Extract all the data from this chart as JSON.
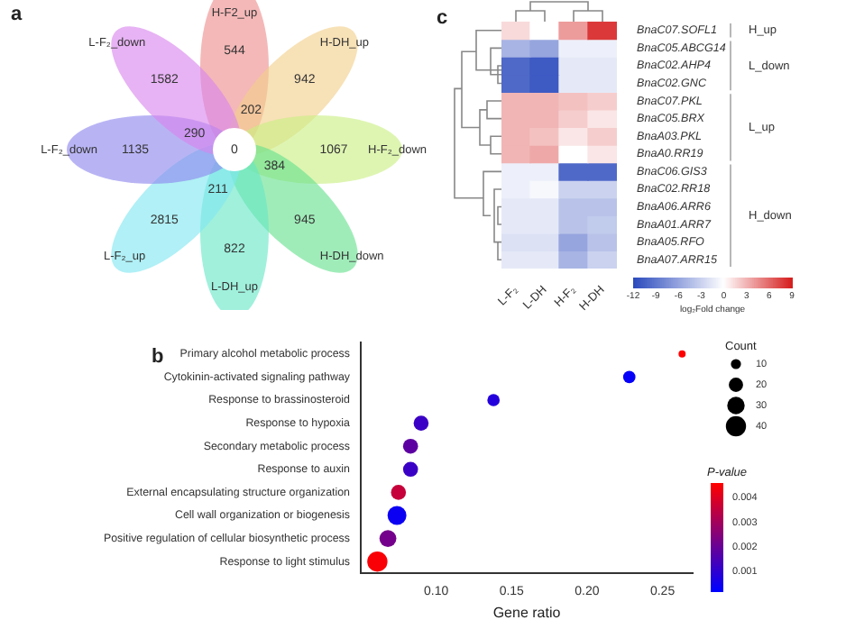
{
  "chart_data": [
    {
      "type": "other",
      "title": "a",
      "categories": [
        "H-F2_up",
        "H-DH_up",
        "H-F₂_down",
        "H-DH_down",
        "L-DH_up",
        "L-F₂_up",
        "L-F₂_down",
        "L-F₂_down"
      ],
      "colors": [
        "#ee8c8c",
        "#f2cf8a",
        "#c9ef82",
        "#66e08e",
        "#66e6c6",
        "#80e6f0",
        "#8c86ee",
        "#d884ee"
      ],
      "annotations": [
        "544",
        "942",
        "1067",
        "945",
        "822",
        "2815",
        "1135",
        "1582",
        "202",
        "384",
        "211",
        "290",
        "0"
      ]
    },
    {
      "type": "bubble",
      "title": "b",
      "orientation": "horizontal",
      "categories": [
        "Primary alcohol metabolic process",
        "Cytokinin-activated signaling pathway",
        "Response to brassinosteroid",
        "Response to hypoxia",
        "Secondary metabolic process",
        "Response to auxin",
        "External encapsulating structure organization",
        "Cell wall organization or biogenesis",
        "Positive regulation of cellular biosynthetic process",
        "Response to light stimulus"
      ],
      "values": [
        0.263,
        0.228,
        0.138,
        0.09,
        0.083,
        0.083,
        0.075,
        0.074,
        0.068,
        0.061
      ],
      "sizes": [
        5,
        15,
        15,
        22,
        22,
        22,
        22,
        35,
        28,
        40
      ],
      "cvalues": [
        0.0046,
        0.0003,
        0.0008,
        0.0012,
        0.0018,
        0.0012,
        0.0036,
        0.0004,
        0.0022,
        0.0045
      ],
      "size_legend": [
        10,
        20,
        30,
        40
      ],
      "legend_title": "Count",
      "clim": [
        0.0002,
        0.0046
      ],
      "cticks": [
        0.001,
        0.002,
        0.003,
        0.004
      ],
      "clabel": "P-value",
      "xlim": [
        0.05,
        0.27
      ],
      "xticks": [
        {
          "value": 0.1,
          "label": "0.10"
        },
        0.15,
        {
          "value": 0.2,
          "label": "0.20"
        },
        0.25
      ],
      "xlabel": "Gene ratio"
    },
    {
      "type": "heatmap",
      "title": "c",
      "categories": [
        "L-F₂",
        "L-DH",
        "H-F₂",
        "H-DH"
      ],
      "y_categories": [
        "BnaC07.SOFL1",
        "BnaC05.ABCG14",
        "BnaC02.AHP4",
        "BnaC02.GNC",
        "BnaC07.PKL",
        "BnaC05.BRX",
        "BnaA03.PKL",
        "BnaA0.RR19",
        "BnaC06.GIS3",
        "BnaC02.RR18",
        "BnaA06.ARR6",
        "BnaA01.ARR7",
        "BnaA05.RFO",
        "BnaA07.ARR15"
      ],
      "cells": [
        [
          1.5,
          0,
          4,
          8
        ],
        [
          -5,
          -6,
          -1,
          -1
        ],
        [
          -10,
          -11,
          -1.5,
          -1.5
        ],
        [
          -10,
          -11,
          -1.5,
          -1.5
        ],
        [
          3,
          3,
          2.5,
          2
        ],
        [
          3,
          3,
          2,
          1
        ],
        [
          3,
          2.5,
          1,
          2
        ],
        [
          3,
          3.5,
          0,
          1
        ],
        [
          -1,
          -1,
          -10,
          -10
        ],
        [
          -1,
          -0.5,
          -3,
          -3
        ],
        [
          -1.5,
          -1.5,
          -4,
          -4
        ],
        [
          -1.5,
          -1.5,
          -4,
          -3.5
        ],
        [
          -2,
          -2,
          -6,
          -4
        ],
        [
          -1.5,
          -1.5,
          -5,
          -3
        ]
      ],
      "clim": [
        -12,
        9
      ],
      "cticks": [
        -12,
        -9,
        -6,
        -3,
        0,
        3,
        6,
        9
      ],
      "clabel": "log₂Fold change",
      "annotations": [
        "H_up",
        "L_down",
        "L_up",
        "H_down"
      ]
    }
  ]
}
